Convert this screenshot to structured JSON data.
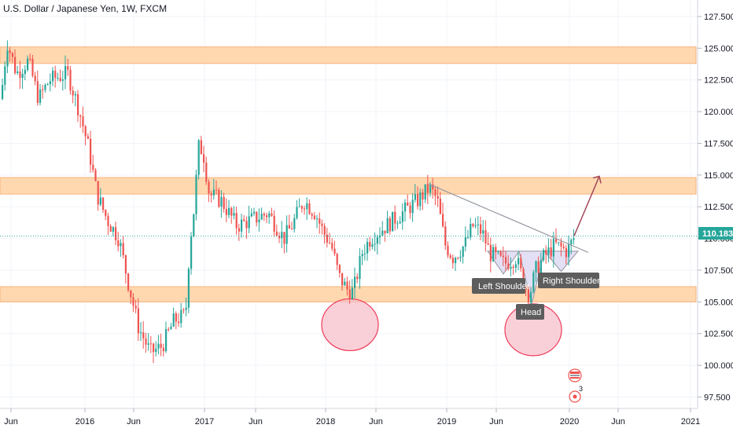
{
  "title": "U.S. Dollar / Japanese Yen, 1W, FXCM",
  "colors": {
    "up": "#26a69a",
    "down": "#ef5350",
    "zone": "#ffd8b0",
    "zone_stroke": "#f7b27a",
    "circle_fill": "#f8bcc8",
    "circle_stroke": "#ef3b5b",
    "trendline": "#9598a1",
    "pattern_fill": "#d9d4f0",
    "arrow": "#a3485a",
    "price_line": "#26a69a",
    "callout_bg": "#5d5d5d"
  },
  "chart_data": {
    "type": "candlestick",
    "title": "U.S. Dollar / Japanese Yen, 1W, FXCM",
    "xlabel": "",
    "ylabel": "",
    "ylim": [
      96.6,
      128.8
    ],
    "y_ticks": [
      "97.500",
      "100.000",
      "102.500",
      "105.000",
      "107.500",
      "110.000",
      "112.500",
      "115.000",
      "117.500",
      "120.000",
      "122.500",
      "125.000",
      "127.500"
    ],
    "x_ticks": [
      "Jun",
      "2016",
      "Jun",
      "2017",
      "Jun",
      "2018",
      "Jun",
      "2019",
      "Jun",
      "2020",
      "Jun",
      "2021"
    ],
    "last_price": "110.183",
    "path_anchors": [
      [
        0,
        121.0
      ],
      [
        8,
        125.5
      ],
      [
        20,
        123.0
      ],
      [
        35,
        124.0
      ],
      [
        48,
        121.0
      ],
      [
        62,
        122.5
      ],
      [
        85,
        123.0
      ],
      [
        100,
        120.0
      ],
      [
        112,
        117.0
      ],
      [
        122,
        113.5
      ],
      [
        135,
        111.5
      ],
      [
        150,
        110.0
      ],
      [
        162,
        106.5
      ],
      [
        175,
        103.0
      ],
      [
        190,
        101.0
      ],
      [
        205,
        101.5
      ],
      [
        220,
        103.5
      ],
      [
        235,
        104.0
      ],
      [
        240,
        109.5
      ],
      [
        245,
        112.0
      ],
      [
        252,
        117.5
      ],
      [
        258,
        116.5
      ],
      [
        265,
        113.5
      ],
      [
        280,
        113.0
      ],
      [
        300,
        111.0
      ],
      [
        320,
        111.5
      ],
      [
        340,
        112.0
      ],
      [
        360,
        110.0
      ],
      [
        370,
        111.0
      ],
      [
        385,
        113.0
      ],
      [
        400,
        112.0
      ],
      [
        410,
        110.5
      ],
      [
        420,
        109.5
      ],
      [
        430,
        107.0
      ],
      [
        440,
        106.0
      ],
      [
        448,
        105.8
      ],
      [
        460,
        109.0
      ],
      [
        470,
        110.0
      ],
      [
        490,
        111.0
      ],
      [
        510,
        112.0
      ],
      [
        530,
        113.0
      ],
      [
        545,
        114.0
      ],
      [
        555,
        113.0
      ],
      [
        565,
        109.5
      ],
      [
        575,
        108.5
      ],
      [
        590,
        109.5
      ],
      [
        600,
        111.0
      ],
      [
        612,
        110.5
      ],
      [
        622,
        108.8
      ],
      [
        630,
        108.5
      ],
      [
        640,
        108.0
      ],
      [
        655,
        108.5
      ],
      [
        665,
        106.5
      ],
      [
        672,
        105.5
      ],
      [
        680,
        107.5
      ],
      [
        690,
        108.5
      ],
      [
        705,
        109.5
      ],
      [
        720,
        109.0
      ],
      [
        730,
        110.2
      ]
    ],
    "zones": [
      [
        123.8,
        125.1
      ],
      [
        113.5,
        114.8
      ],
      [
        105.0,
        106.2
      ]
    ],
    "annotations": [
      "Left Shoulder",
      "Head",
      "Right Shoulder"
    ],
    "event_badge_count": "3"
  }
}
